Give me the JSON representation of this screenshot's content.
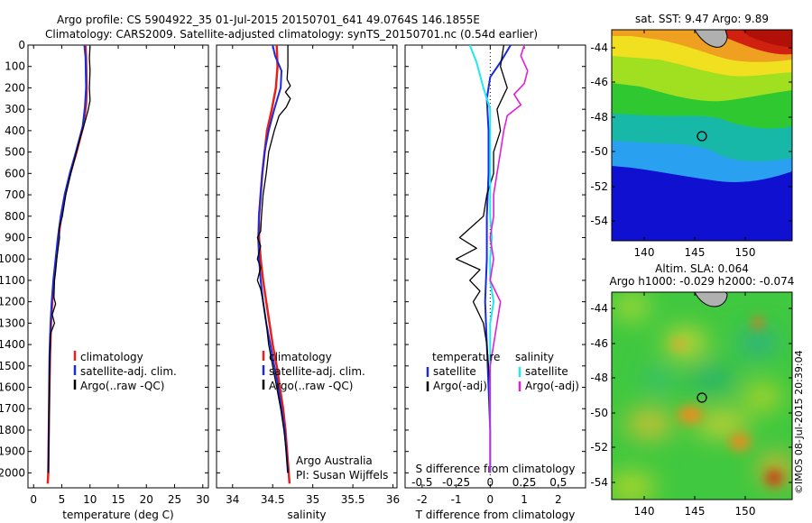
{
  "header": {
    "line1": "Argo profile: CS 5904922_35 01-Jul-2015 20150701_641 49.0764S 146.1855E",
    "line2": "Climatology: CARS2009. Satellite-adjusted climatology: synTS_20150701.nc (0.54d earlier)"
  },
  "colors": {
    "climatology": "#e8201a",
    "satellite": "#1c2bd8",
    "argo": "#000000",
    "salinity_satellite": "#20e8f0",
    "salinity_argo": "#e020d8"
  },
  "chart_data": [
    {
      "type": "line",
      "id": "temperature",
      "xlabel": "temperature (deg C)",
      "xlim": [
        -1,
        31
      ],
      "xticks": [
        0,
        5,
        10,
        15,
        20,
        25,
        30
      ],
      "ylim": [
        2070,
        0
      ],
      "yticks": [
        0,
        100,
        200,
        300,
        400,
        500,
        600,
        700,
        800,
        900,
        1000,
        1100,
        1200,
        1300,
        1400,
        1500,
        1600,
        1700,
        1800,
        1900,
        2000
      ],
      "legend": [
        "climatology",
        "satellite-adj. clim.",
        "Argo(..raw -QC)"
      ],
      "series": [
        {
          "name": "climatology",
          "color": "#e8201a",
          "width": 2.5,
          "points": [
            [
              9.2,
              0
            ],
            [
              9.3,
              60
            ],
            [
              9.4,
              200
            ],
            [
              9.3,
              280
            ],
            [
              8.8,
              380
            ],
            [
              7.6,
              500
            ],
            [
              6.5,
              600
            ],
            [
              5.6,
              700
            ],
            [
              4.9,
              800
            ],
            [
              4.4,
              900
            ],
            [
              4.0,
              1000
            ],
            [
              3.6,
              1100
            ],
            [
              3.3,
              1200
            ],
            [
              3.1,
              1300
            ],
            [
              2.9,
              1450
            ],
            [
              2.8,
              1600
            ],
            [
              2.7,
              1800
            ],
            [
              2.6,
              2000
            ],
            [
              2.5,
              2050
            ]
          ]
        },
        {
          "name": "satellite-adj. clim.",
          "color": "#1c2bd8",
          "width": 2,
          "points": [
            [
              9.0,
              0
            ],
            [
              9.2,
              60
            ],
            [
              9.3,
              200
            ],
            [
              9.1,
              290
            ],
            [
              8.7,
              380
            ],
            [
              7.5,
              500
            ],
            [
              6.4,
              600
            ],
            [
              5.5,
              700
            ],
            [
              4.8,
              800
            ],
            [
              4.3,
              900
            ],
            [
              3.9,
              1000
            ],
            [
              3.5,
              1100
            ],
            [
              3.2,
              1200
            ],
            [
              3.0,
              1300
            ],
            [
              2.8,
              1450
            ],
            [
              2.75,
              1600
            ],
            [
              2.7,
              1800
            ],
            [
              2.6,
              2000
            ]
          ]
        },
        {
          "name": "Argo(..raw -QC)",
          "color": "#000000",
          "width": 1.3,
          "points": [
            [
              10.0,
              5
            ],
            [
              9.9,
              60
            ],
            [
              10.0,
              120
            ],
            [
              9.9,
              200
            ],
            [
              10.0,
              260
            ],
            [
              9.7,
              300
            ],
            [
              9.2,
              350
            ],
            [
              8.4,
              420
            ],
            [
              7.6,
              500
            ],
            [
              6.6,
              600
            ],
            [
              5.7,
              700
            ],
            [
              5.1,
              800
            ],
            [
              4.5,
              860
            ],
            [
              4.6,
              900
            ],
            [
              4.3,
              960
            ],
            [
              4.1,
              1000
            ],
            [
              3.9,
              1060
            ],
            [
              3.7,
              1100
            ],
            [
              3.6,
              1180
            ],
            [
              3.9,
              1210
            ],
            [
              3.3,
              1260
            ],
            [
              3.7,
              1300
            ],
            [
              3.0,
              1350
            ],
            [
              2.9,
              1450
            ],
            [
              2.8,
              1600
            ],
            [
              2.7,
              1800
            ],
            [
              2.65,
              1900
            ],
            [
              2.6,
              2000
            ]
          ]
        }
      ]
    },
    {
      "type": "line",
      "id": "salinity",
      "xlabel": "salinity",
      "xlim": [
        33.8,
        36.05
      ],
      "xticks": [
        34,
        34.5,
        35,
        35.5,
        36
      ],
      "ylim": [
        2070,
        0
      ],
      "legend": [
        "climatology",
        "satellite-adj. clim.",
        "Argo(..raw -QC)"
      ],
      "annotation": [
        "Argo Australia",
        "PI: Susan Wijffels"
      ],
      "series": [
        {
          "name": "climatology",
          "color": "#e8201a",
          "width": 2.5,
          "points": [
            [
              34.55,
              0
            ],
            [
              34.56,
              100
            ],
            [
              34.54,
              200
            ],
            [
              34.49,
              300
            ],
            [
              34.43,
              400
            ],
            [
              34.4,
              500
            ],
            [
              34.37,
              600
            ],
            [
              34.35,
              700
            ],
            [
              34.33,
              800
            ],
            [
              34.33,
              900
            ],
            [
              34.35,
              1000
            ],
            [
              34.38,
              1100
            ],
            [
              34.42,
              1200
            ],
            [
              34.46,
              1300
            ],
            [
              34.5,
              1400
            ],
            [
              34.55,
              1500
            ],
            [
              34.59,
              1600
            ],
            [
              34.63,
              1700
            ],
            [
              34.66,
              1800
            ],
            [
              34.68,
              1900
            ],
            [
              34.7,
              2000
            ],
            [
              34.71,
              2050
            ]
          ]
        },
        {
          "name": "satellite-adj. clim.",
          "color": "#1c2bd8",
          "width": 2,
          "points": [
            [
              34.5,
              0
            ],
            [
              34.53,
              50
            ],
            [
              34.61,
              120
            ],
            [
              34.6,
              200
            ],
            [
              34.52,
              300
            ],
            [
              34.45,
              400
            ],
            [
              34.4,
              500
            ],
            [
              34.37,
              600
            ],
            [
              34.35,
              700
            ],
            [
              34.33,
              800
            ],
            [
              34.32,
              900
            ],
            [
              34.33,
              1000
            ],
            [
              34.35,
              1100
            ],
            [
              34.38,
              1200
            ],
            [
              34.42,
              1300
            ],
            [
              34.47,
              1400
            ],
            [
              34.52,
              1500
            ],
            [
              34.57,
              1600
            ],
            [
              34.61,
              1700
            ],
            [
              34.65,
              1800
            ],
            [
              34.67,
              1900
            ],
            [
              34.69,
              2000
            ]
          ]
        },
        {
          "name": "Argo(..raw -QC)",
          "color": "#000000",
          "width": 1.3,
          "points": [
            [
              34.69,
              0
            ],
            [
              34.69,
              60
            ],
            [
              34.69,
              100
            ],
            [
              34.68,
              160
            ],
            [
              34.72,
              190
            ],
            [
              34.66,
              220
            ],
            [
              34.72,
              250
            ],
            [
              34.67,
              290
            ],
            [
              34.58,
              330
            ],
            [
              34.52,
              400
            ],
            [
              34.45,
              500
            ],
            [
              34.42,
              600
            ],
            [
              34.38,
              700
            ],
            [
              34.36,
              800
            ],
            [
              34.35,
              870
            ],
            [
              34.31,
              900
            ],
            [
              34.35,
              940
            ],
            [
              34.31,
              1000
            ],
            [
              34.35,
              1040
            ],
            [
              34.31,
              1100
            ],
            [
              34.35,
              1140
            ],
            [
              34.38,
              1200
            ],
            [
              34.42,
              1300
            ],
            [
              34.45,
              1400
            ],
            [
              34.5,
              1500
            ],
            [
              34.55,
              1600
            ],
            [
              34.6,
              1700
            ],
            [
              34.64,
              1800
            ],
            [
              34.67,
              1900
            ],
            [
              34.69,
              2000
            ]
          ]
        }
      ]
    },
    {
      "type": "line",
      "id": "difference",
      "xlabel": "T difference from climatology",
      "xlabel_top": "S difference from climatology",
      "xlim": [
        -2.5,
        2.8
      ],
      "xticks": [
        -2,
        -1,
        0,
        1,
        2
      ],
      "sticks_labels": [
        "-0.5",
        "-0.25",
        "0",
        "0.25",
        "0.5"
      ],
      "sticks_pos": [
        -2,
        -1,
        0,
        1,
        2
      ],
      "ylim": [
        2070,
        0
      ],
      "legend_temperature": [
        "temperature",
        "satellite",
        "Argo(-adj)"
      ],
      "legend_salinity": [
        "salinity",
        "satellite",
        "Argo(-adj)"
      ],
      "series": [
        {
          "name": "T satellite",
          "color": "#1c2bd8",
          "width": 2,
          "points": [
            [
              0.6,
              0
            ],
            [
              0.3,
              80
            ],
            [
              0.0,
              150
            ],
            [
              -0.1,
              250
            ],
            [
              -0.05,
              400
            ],
            [
              -0.05,
              600
            ],
            [
              -0.1,
              800
            ],
            [
              -0.1,
              1000
            ],
            [
              -0.15,
              1200
            ],
            [
              -0.1,
              1400
            ],
            [
              -0.05,
              1600
            ],
            [
              0.0,
              1800
            ],
            [
              0.0,
              2000
            ]
          ]
        },
        {
          "name": "T Argo(-adj)",
          "color": "#000000",
          "width": 1.3,
          "points": [
            [
              0.4,
              0
            ],
            [
              0.3,
              100
            ],
            [
              0.5,
              200
            ],
            [
              0.2,
              300
            ],
            [
              0.3,
              400
            ],
            [
              0.1,
              500
            ],
            [
              0.1,
              600
            ],
            [
              -0.1,
              700
            ],
            [
              -0.2,
              800
            ],
            [
              -0.9,
              900
            ],
            [
              -0.4,
              950
            ],
            [
              -1.0,
              1000
            ],
            [
              -0.3,
              1050
            ],
            [
              -0.6,
              1100
            ],
            [
              -0.3,
              1150
            ],
            [
              -0.5,
              1200
            ],
            [
              -0.2,
              1300
            ],
            [
              -0.1,
              1400
            ],
            [
              0.0,
              1600
            ],
            [
              0.0,
              1800
            ],
            [
              0.0,
              2000
            ]
          ]
        },
        {
          "name": "S satellite",
          "color": "#20e8f0",
          "width": 2,
          "points": [
            [
              -0.6,
              0
            ],
            [
              -0.4,
              80
            ],
            [
              -0.2,
              200
            ],
            [
              0.0,
              300
            ],
            [
              0.0,
              400
            ],
            [
              0.0,
              500
            ],
            [
              0.0,
              600
            ],
            [
              0.0,
              700
            ],
            [
              0.0,
              800
            ],
            [
              0.05,
              900
            ],
            [
              0.0,
              1000
            ],
            [
              0.0,
              1100
            ],
            [
              0.1,
              1200
            ],
            [
              0.0,
              1300
            ],
            [
              0.0,
              1400
            ],
            [
              0.0,
              1500
            ],
            [
              0.0,
              1700
            ],
            [
              0.0,
              2000
            ]
          ]
        },
        {
          "name": "S Argo(-adj)",
          "color": "#e020d8",
          "width": 1.6,
          "points": [
            [
              1.0,
              0
            ],
            [
              0.9,
              50
            ],
            [
              1.1,
              120
            ],
            [
              1.0,
              180
            ],
            [
              0.7,
              230
            ],
            [
              0.9,
              280
            ],
            [
              0.5,
              330
            ],
            [
              0.4,
              400
            ],
            [
              0.3,
              500
            ],
            [
              0.2,
              600
            ],
            [
              0.1,
              700
            ],
            [
              0.1,
              800
            ],
            [
              0.0,
              900
            ],
            [
              0.1,
              1000
            ],
            [
              0.0,
              1100
            ],
            [
              0.3,
              1200
            ],
            [
              0.2,
              1300
            ],
            [
              0.1,
              1400
            ],
            [
              0.0,
              1500
            ],
            [
              0.0,
              1700
            ],
            [
              0.0,
              2000
            ]
          ]
        }
      ]
    }
  ],
  "maps": {
    "sst_title": "sat. SST: 9.47 Argo: 9.89",
    "sla_title1": "Altim. SLA: 0.064",
    "sla_title2": "Argo h1000: -0.029 h2000: -0.074",
    "lat_ticks": [
      "-44",
      "-46",
      "-48",
      "-50",
      "-52",
      "-54"
    ],
    "lon_ticks": [
      "140",
      "145",
      "150"
    ],
    "credit": "©IMOS 08-Jul-2015 20:39:04"
  }
}
